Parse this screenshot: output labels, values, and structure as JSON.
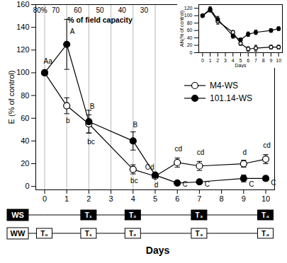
{
  "chart_data": {
    "type": "line",
    "xlabel": "Days",
    "ylabel": "E (% of control)",
    "x": [
      0,
      1,
      2,
      4,
      5,
      6,
      7,
      9,
      10
    ],
    "xlim": [
      -0.4,
      10.4
    ],
    "xticks": [
      0,
      1,
      2,
      3,
      4,
      5,
      6,
      7,
      8,
      9,
      10
    ],
    "ylim": [
      -3,
      160
    ],
    "yticks": [
      0,
      20,
      40,
      60,
      80,
      100,
      120,
      140,
      160
    ],
    "legend": "right",
    "series": [
      {
        "name": "M4-WS",
        "color": "#000000",
        "marker": "circle-open",
        "values": [
          100,
          71,
          55,
          15,
          9,
          21,
          18,
          20,
          24
        ],
        "errors": [
          0,
          7,
          8,
          4,
          2,
          4,
          4,
          3,
          4
        ]
      },
      {
        "name": "101.14-WS",
        "color": "#000000",
        "marker": "circle",
        "values": [
          100,
          125,
          57,
          40,
          10,
          3,
          4,
          7,
          7
        ],
        "errors": [
          0,
          22,
          10,
          8,
          1,
          1,
          1,
          3,
          2
        ]
      }
    ],
    "letters": [
      {
        "x": 0.15,
        "y": 110,
        "text": "Aa"
      },
      {
        "x": 1.25,
        "y": 136,
        "text": "A"
      },
      {
        "x": 1.05,
        "y": 58,
        "text": "b"
      },
      {
        "x": 2.15,
        "y": 70,
        "text": "B"
      },
      {
        "x": 2.1,
        "y": 39,
        "text": "bc"
      },
      {
        "x": 4.1,
        "y": 54,
        "text": "B"
      },
      {
        "x": 4.05,
        "y": 5,
        "text": "bc"
      },
      {
        "x": 4.75,
        "y": 17,
        "text": "Cd"
      },
      {
        "x": 5.05,
        "y": 1,
        "text": "d"
      },
      {
        "x": 6.05,
        "y": 33,
        "text": "cd"
      },
      {
        "x": 6.35,
        "y": 2,
        "text": "C"
      },
      {
        "x": 7.05,
        "y": 30,
        "text": "cd"
      },
      {
        "x": 7.35,
        "y": 2,
        "text": "C"
      },
      {
        "x": 9.05,
        "y": 30,
        "text": "d"
      },
      {
        "x": 9.35,
        "y": 2,
        "text": "C"
      },
      {
        "x": 10.05,
        "y": 36,
        "text": "cd"
      },
      {
        "x": 10.35,
        "y": 3,
        "text": "C"
      }
    ],
    "field_capacity": {
      "title": "% of field capacity",
      "title_x": 2.5,
      "title_y": 146,
      "lines": [
        0,
        1,
        2,
        3,
        4,
        5
      ],
      "labels": [
        {
          "x": -0.2,
          "y": 155,
          "text": "80%"
        },
        {
          "x": 0.5,
          "y": 155,
          "text": "70"
        },
        {
          "x": 1.5,
          "y": 155,
          "text": "60"
        },
        {
          "x": 2.5,
          "y": 155,
          "text": "50"
        },
        {
          "x": 3.5,
          "y": 155,
          "text": "40"
        },
        {
          "x": 4.5,
          "y": 155,
          "text": "30"
        }
      ]
    },
    "inset": {
      "type": "line",
      "xlabel": "Days",
      "ylabel": "AN(% of control)",
      "x": [
        0,
        1,
        2,
        4,
        5,
        6,
        7,
        9,
        10
      ],
      "xlim": [
        -0.5,
        10.5
      ],
      "xticks": [
        0,
        1,
        2,
        3,
        4,
        5,
        6,
        7,
        8,
        9,
        10
      ],
      "ylim": [
        0,
        130
      ],
      "yticks": [
        0,
        20,
        40,
        60,
        80,
        100,
        120
      ],
      "series": [
        {
          "name": "M4-WS",
          "color": "#000000",
          "marker": "circle-open",
          "values": [
            100,
            115,
            85,
            55,
            25,
            10,
            12,
            15,
            15
          ],
          "errors": [
            0,
            5,
            8,
            5,
            5,
            6,
            8,
            5,
            5
          ]
        },
        {
          "name": "101.14-WS",
          "color": "#000000",
          "marker": "circle",
          "values": [
            100,
            118,
            90,
            45,
            35,
            50,
            55,
            60,
            65
          ],
          "errors": [
            0,
            6,
            8,
            6,
            4,
            6,
            6,
            5,
            5
          ]
        }
      ]
    },
    "timeline": [
      {
        "name": "WS",
        "color": "#000000",
        "points": [
          {
            "x": 2,
            "label": "T₁"
          },
          {
            "x": 4,
            "label": "T₂"
          },
          {
            "x": 7,
            "label": "T₃"
          },
          {
            "x": 10,
            "label": "T₄"
          }
        ]
      },
      {
        "name": "WW",
        "color": "#ffffff",
        "points": [
          {
            "x": 0,
            "label": "T₀"
          },
          {
            "x": 2,
            "label": "T₁"
          },
          {
            "x": 4,
            "label": "T₂"
          },
          {
            "x": 7,
            "label": "T₃"
          },
          {
            "x": 10,
            "label": "T₄"
          }
        ]
      }
    ]
  }
}
